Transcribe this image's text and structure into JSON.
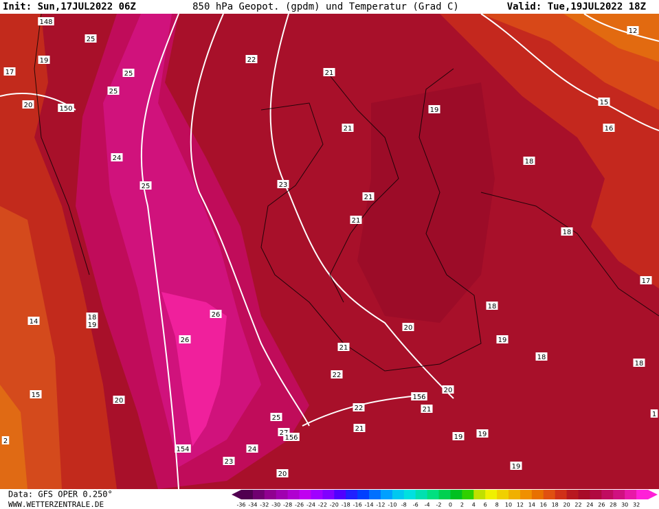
{
  "header": {
    "init": "Init: Sun,17JUL2022 06Z",
    "title": "850 hPa Geopot. (gpdm) und Temperatur (Grad C)",
    "valid": "Valid: Tue,19JUL2022 18Z"
  },
  "contour_labels": [
    "148",
    "25",
    "19",
    "17",
    "25",
    "25",
    "20",
    "150",
    "22",
    "21",
    "12",
    "15",
    "19",
    "21",
    "16",
    "24",
    "25",
    "23",
    "18",
    "21",
    "21",
    "18",
    "17",
    "18",
    "26",
    "18",
    "19",
    "14",
    "20",
    "26",
    "19",
    "21",
    "18",
    "18",
    "22",
    "20",
    "15",
    "20",
    "156",
    "22",
    "21",
    "25",
    "1",
    "21",
    "27",
    "156",
    "19",
    "19",
    "2",
    "154",
    "24",
    "23",
    "19",
    "20"
  ],
  "footer": {
    "data": "Data: GFS OPER 0.250°",
    "site": "WWW.WETTERZENTRALE.DE"
  },
  "colorbar": {
    "labels": [
      "-36",
      "-34",
      "-32",
      "-30",
      "-28",
      "-26",
      "-24",
      "-22",
      "-20",
      "-18",
      "-16",
      "-14",
      "-12",
      "-10",
      "-8",
      "-6",
      "-4",
      "-2",
      "0",
      "2",
      "4",
      "6",
      "8",
      "10",
      "12",
      "14",
      "16",
      "18",
      "20",
      "22",
      "24",
      "26",
      "28",
      "30",
      "32"
    ]
  }
}
